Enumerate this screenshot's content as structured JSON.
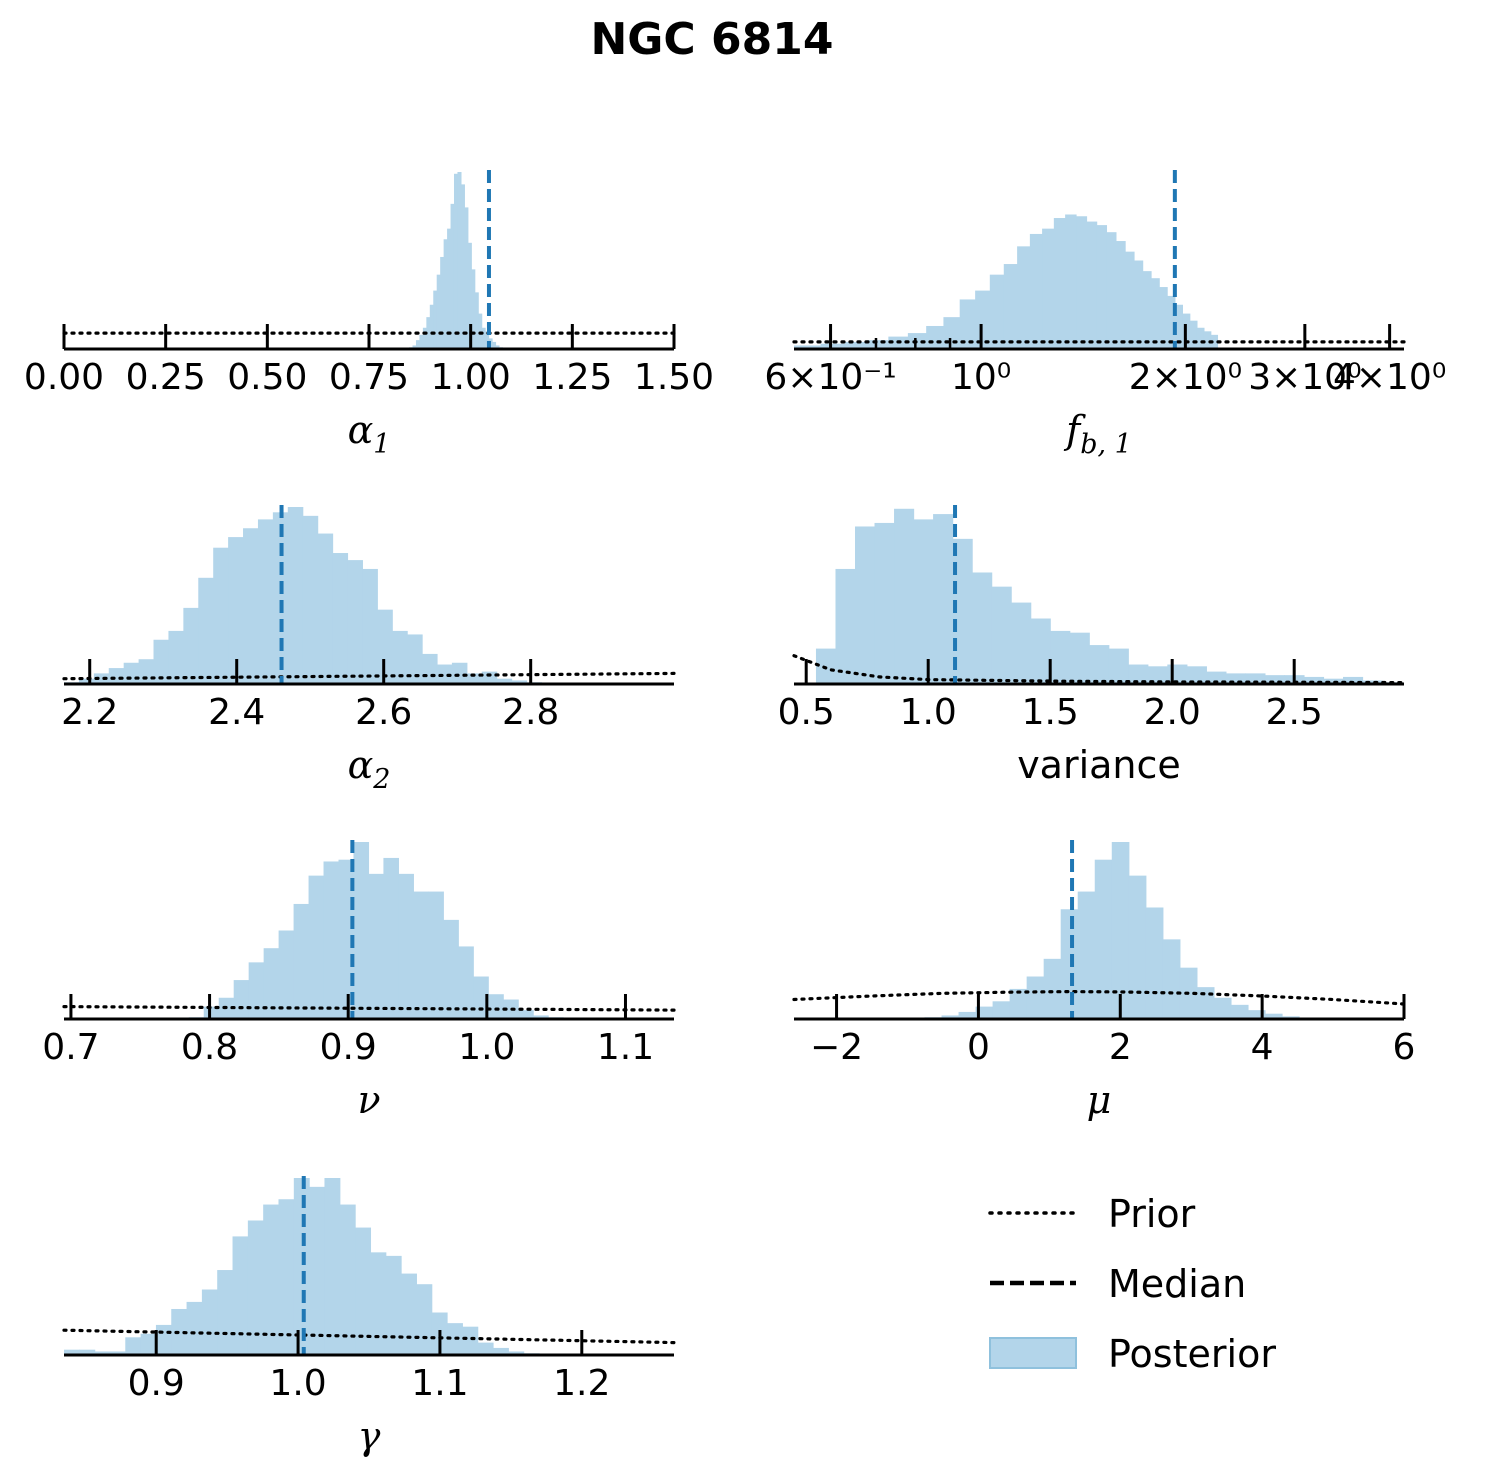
{
  "title": "NGC 6814",
  "colors": {
    "posterior_fill": "#b3d5ea",
    "posterior_edge": "#8fc1dd",
    "median": "#1f77b4",
    "prior": "#000000"
  },
  "legend": {
    "placement": "lower-right",
    "items": [
      {
        "label": "Prior",
        "style": "dotted"
      },
      {
        "label": "Median",
        "style": "dashed"
      },
      {
        "label": "Posterior",
        "style": "patch"
      }
    ]
  },
  "chart_data": [
    {
      "type": "bar",
      "xlabel": "α₁",
      "xlim": [
        0.0,
        1.5
      ],
      "scale": "linear",
      "ticks": [
        0.0,
        0.25,
        0.5,
        0.75,
        1.0,
        1.25,
        1.5
      ],
      "tick_labels": [
        "0.00",
        "0.25",
        "0.50",
        "0.75",
        "1.00",
        "1.25",
        "1.50"
      ],
      "median": 1.045,
      "hist": {
        "start": 0.84,
        "width": 0.0085,
        "counts": [
          0.005,
          0.01,
          0.02,
          0.05,
          0.08,
          0.12,
          0.18,
          0.25,
          0.33,
          0.42,
          0.52,
          0.62,
          0.68,
          0.82,
          0.99,
          1.0,
          0.93,
          0.8,
          0.6,
          0.45,
          0.32,
          0.2,
          0.12,
          0.1,
          0.06,
          0.04,
          0.02,
          0.01,
          0.005
        ]
      },
      "prior": {
        "x": [
          0.0,
          1.5
        ],
        "y": [
          0.09,
          0.09
        ]
      }
    },
    {
      "type": "bar",
      "xlabel": "f_b,1",
      "xlim": [
        0.53,
        4.2
      ],
      "scale": "log",
      "ticks": [
        0.6,
        1.0,
        2.0,
        3.0,
        4.0
      ],
      "tick_labels": [
        "6×10⁻¹",
        "10⁰",
        "2×10⁰",
        "3×10⁰",
        "4×10⁰"
      ],
      "minor_ticks": [
        0.6,
        0.7,
        0.8,
        0.9,
        2.0,
        3.0,
        4.0
      ],
      "median": 1.93,
      "hist": {
        "start": 0.53,
        "width": 0.05,
        "counts": [
          0.02,
          0.03,
          0.04,
          0.05,
          0.07,
          0.09,
          0.13,
          0.18,
          0.28,
          0.33,
          0.42,
          0.48,
          0.58,
          0.65,
          0.68,
          0.74,
          0.76,
          0.75,
          0.72,
          0.7,
          0.66,
          0.61,
          0.55,
          0.5,
          0.44,
          0.4,
          0.35,
          0.3,
          0.25,
          0.2,
          0.16,
          0.12,
          0.1,
          0.08
        ]
      },
      "prior": {
        "x": [
          0.53,
          4.2
        ],
        "y": [
          0.04,
          0.04
        ]
      }
    },
    {
      "type": "bar",
      "xlabel": "α₂",
      "xlim": [
        2.165,
        2.995
      ],
      "scale": "linear",
      "ticks": [
        2.2,
        2.4,
        2.6,
        2.8
      ],
      "tick_labels": [
        "2.2",
        "2.4",
        "2.6",
        "2.8"
      ],
      "median": 2.461,
      "hist": {
        "start": 2.165,
        "width": 0.0203,
        "counts": [
          0.01,
          0.03,
          0.06,
          0.09,
          0.12,
          0.14,
          0.25,
          0.3,
          0.43,
          0.6,
          0.77,
          0.83,
          0.88,
          0.93,
          0.97,
          1.0,
          0.95,
          0.85,
          0.74,
          0.7,
          0.65,
          0.42,
          0.3,
          0.28,
          0.17,
          0.11,
          0.12,
          0.06,
          0.07,
          0.03,
          0.02,
          0.01,
          0.005
        ]
      },
      "prior": {
        "x": [
          2.165,
          2.995
        ],
        "y": [
          0.03,
          0.06
        ]
      }
    },
    {
      "type": "bar",
      "xlabel": "variance",
      "xlim": [
        0.45,
        2.95
      ],
      "scale": "linear",
      "ticks": [
        0.5,
        1.0,
        1.5,
        2.0,
        2.5
      ],
      "tick_labels": [
        "0.5",
        "1.0",
        "1.5",
        "2.0",
        "2.5"
      ],
      "median": 1.11,
      "hist": {
        "start": 0.54,
        "width": 0.08,
        "counts": [
          0.2,
          0.65,
          0.89,
          0.91,
          0.99,
          0.93,
          0.96,
          0.82,
          0.63,
          0.55,
          0.46,
          0.37,
          0.3,
          0.29,
          0.22,
          0.2,
          0.11,
          0.1,
          0.11,
          0.1,
          0.07,
          0.06,
          0.06,
          0.05,
          0.05,
          0.04,
          0.03,
          0.04,
          0.02,
          0.01
        ]
      },
      "prior": {
        "x": [
          0.45,
          0.6,
          0.8,
          1.0,
          1.3,
          1.6,
          2.0,
          2.5,
          2.95
        ],
        "y": [
          0.16,
          0.08,
          0.04,
          0.025,
          0.02,
          0.015,
          0.012,
          0.01,
          0.008
        ]
      }
    },
    {
      "type": "bar",
      "xlabel": "ν",
      "xlim": [
        0.695,
        1.135
      ],
      "scale": "linear",
      "ticks": [
        0.7,
        0.8,
        0.9,
        1.0,
        1.1
      ],
      "tick_labels": [
        "0.7",
        "0.8",
        "0.9",
        "1.0",
        "1.1"
      ],
      "median": 0.903,
      "hist": {
        "start": 0.785,
        "width": 0.0108,
        "counts": [
          0.01,
          0.07,
          0.12,
          0.22,
          0.32,
          0.4,
          0.5,
          0.65,
          0.81,
          0.89,
          0.9,
          1.0,
          0.82,
          0.91,
          0.82,
          0.72,
          0.72,
          0.56,
          0.41,
          0.24,
          0.14,
          0.11,
          0.05,
          0.02,
          0.01
        ]
      },
      "prior": {
        "x": [
          0.695,
          1.135
        ],
        "y": [
          0.07,
          0.05
        ]
      }
    },
    {
      "type": "bar",
      "xlabel": "μ",
      "xlim": [
        -2.6,
        6.0
      ],
      "scale": "linear",
      "ticks": [
        -2,
        0,
        2,
        4,
        6
      ],
      "tick_labels": [
        "−2",
        "0",
        "2",
        "4",
        "6"
      ],
      "median": 1.32,
      "hist": {
        "start": -1.0,
        "width": 0.24,
        "counts": [
          0.005,
          0.01,
          0.02,
          0.04,
          0.07,
          0.1,
          0.17,
          0.24,
          0.34,
          0.62,
          0.72,
          0.9,
          1.0,
          0.81,
          0.63,
          0.45,
          0.29,
          0.18,
          0.12,
          0.08,
          0.05,
          0.03,
          0.015,
          0.005
        ]
      },
      "prior": {
        "x": [
          -2.6,
          -1.5,
          -0.5,
          0.5,
          1.3,
          2.0,
          3.0,
          4.0,
          5.0,
          6.0
        ],
        "y": [
          0.11,
          0.13,
          0.145,
          0.152,
          0.155,
          0.153,
          0.145,
          0.13,
          0.11,
          0.085
        ]
      }
    },
    {
      "type": "bar",
      "xlabel": "γ",
      "xlim": [
        0.835,
        1.265
      ],
      "scale": "linear",
      "ticks": [
        0.9,
        1.0,
        1.1,
        1.2
      ],
      "tick_labels": [
        "0.9",
        "1.0",
        "1.1",
        "1.2"
      ],
      "median": 1.004,
      "hist": {
        "start": 0.835,
        "width": 0.0108,
        "counts": [
          0.03,
          0.03,
          0.02,
          0.02,
          0.1,
          0.12,
          0.17,
          0.26,
          0.3,
          0.37,
          0.48,
          0.67,
          0.76,
          0.85,
          0.88,
          1.0,
          0.95,
          1.0,
          0.85,
          0.72,
          0.58,
          0.56,
          0.46,
          0.4,
          0.24,
          0.18,
          0.16,
          0.07,
          0.04,
          0.02,
          0.01
        ]
      },
      "prior": {
        "x": [
          0.835,
          1.265
        ],
        "y": [
          0.14,
          0.07
        ]
      }
    }
  ]
}
